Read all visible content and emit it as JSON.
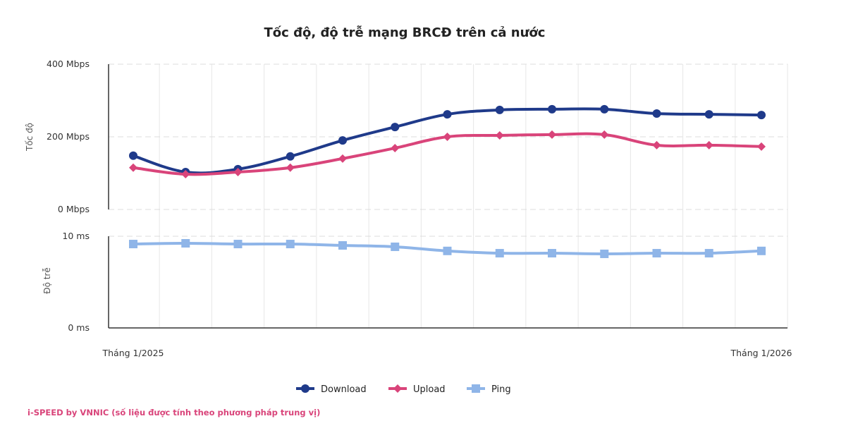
{
  "chart_data": {
    "type": "line",
    "title": "Tốc độ, độ trễ mạng BRCĐ trên cả nước",
    "x_points": [
      0,
      1,
      2,
      3,
      4,
      5,
      6,
      7,
      8,
      9,
      10,
      11,
      12
    ],
    "x_tick_labels": [
      "Tháng 1/2025",
      "Tháng 1/2026"
    ],
    "panels": [
      {
        "ylabel": "Tốc độ",
        "ylim": [
          0,
          400
        ],
        "y_ticks": [
          {
            "v": 400,
            "label": "400 Mbps"
          },
          {
            "v": 200,
            "label": "200 Mbps"
          },
          {
            "v": 0,
            "label": "0 Mbps"
          }
        ],
        "series": [
          {
            "name": "Download",
            "color": "#1f3a8a",
            "marker": "circle",
            "values": [
              148,
              103,
              111,
              146,
              190,
              227,
              262,
              274,
              276,
              276,
              264,
              262,
              260
            ]
          },
          {
            "name": "Upload",
            "color": "#d9447a",
            "marker": "diamond",
            "values": [
              115,
              97,
              103,
              115,
              140,
              169,
              200,
              204,
              206,
              206,
              177,
              177,
              173
            ]
          }
        ]
      },
      {
        "ylabel": "Độ trễ",
        "ylim": [
          0,
          10
        ],
        "y_ticks": [
          {
            "v": 10,
            "label": "10 ms"
          },
          {
            "v": 0,
            "label": "0 ms"
          }
        ],
        "series": [
          {
            "name": "Ping",
            "color": "#8fb5e8",
            "marker": "square",
            "values": [
              9.15,
              9.23,
              9.15,
              9.15,
              9.0,
              8.85,
              8.4,
              8.15,
              8.15,
              8.08,
              8.15,
              8.15,
              8.4
            ]
          }
        ]
      }
    ],
    "legend_position": "bottom-center",
    "grid": true
  },
  "source_note": "i-SPEED by VNNIC (số liệu được tính theo phương pháp trung vị)"
}
